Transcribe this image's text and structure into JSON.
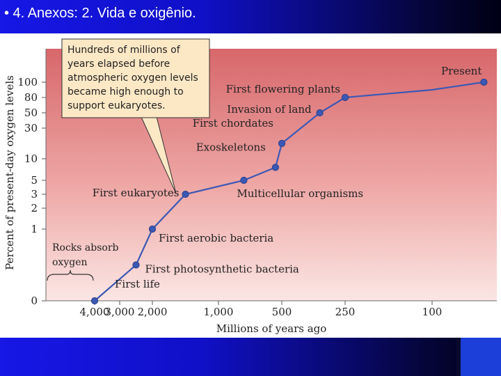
{
  "slide": {
    "title": "• 4. Anexos: 2. Vida e oxigênio.",
    "colors": {
      "bar": "#1212d8",
      "plot_top": "#d7676b",
      "plot_bottom": "#fbe6e4",
      "line": "#3c58b4",
      "callout": "#fde8c6"
    }
  },
  "chart_data": {
    "type": "line",
    "xlabel": "Millions of years ago",
    "ylabel": "Percent of present-day oxygen levels",
    "x_ticks": [
      "4,000",
      "3,000",
      "2,000",
      "1,000",
      "500",
      "250",
      "100"
    ],
    "y_ticks": [
      "0",
      "1",
      "2",
      "3",
      "5",
      "10",
      "30",
      "50",
      "80",
      "100"
    ],
    "series": [
      {
        "points": [
          {
            "x": 4000,
            "y": 0,
            "label": "First life"
          },
          {
            "x": 2500,
            "y": 0.5,
            "label": "First photosynthetic bacteria"
          },
          {
            "x": 2000,
            "y": 1,
            "label": "First aerobic bacteria"
          },
          {
            "x": 1500,
            "y": 3,
            "label": "First eukaryotes"
          },
          {
            "x": 800,
            "y": 5,
            "label": "Multicellular organisms"
          },
          {
            "x": 550,
            "y": 8,
            "label": "Exoskeletons"
          },
          {
            "x": 500,
            "y": 20,
            "label": "First chordates"
          },
          {
            "x": 350,
            "y": 50,
            "label": "Invasion of land"
          },
          {
            "x": 250,
            "y": 80,
            "label": "First flowering plants"
          },
          {
            "x": 20,
            "y": 100,
            "label": "Present"
          }
        ]
      }
    ],
    "annotations": {
      "callout": [
        "Hundreds of millions of",
        "years elapsed before",
        "atmospheric oxygen levels",
        "became high enough to",
        "support eukaryotes."
      ],
      "rocks": [
        "Rocks absorb",
        "oxygen"
      ]
    }
  }
}
